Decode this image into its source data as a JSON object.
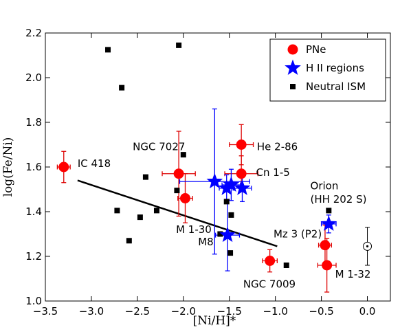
{
  "chart_data": {
    "type": "scatter",
    "xlabel": "[Ni/H]*",
    "ylabel": "log(Fe/Ni)",
    "xlim": [
      -3.5,
      0.25
    ],
    "ylim": [
      1.0,
      2.2
    ],
    "x_ticks": [
      -3.5,
      -3.0,
      -2.5,
      -2.0,
      -1.5,
      -1.0,
      -0.5,
      0.0
    ],
    "x_tick_labels": [
      "−3.5",
      "−3.0",
      "−2.5",
      "−2.0",
      "−1.5",
      "−1.0",
      "−0.5",
      "0.0"
    ],
    "y_ticks": [
      1.0,
      1.2,
      1.4,
      1.6,
      1.8,
      2.0,
      2.2
    ],
    "y_tick_labels": [
      "1.0",
      "1.2",
      "1.4",
      "1.6",
      "1.8",
      "2.0",
      "2.2"
    ],
    "legend": {
      "position": "top-right",
      "entries": [
        {
          "label": "PNe",
          "marker": "circle",
          "color": "#ff0000"
        },
        {
          "label": "H II regions",
          "marker": "star",
          "color": "#0000ff"
        },
        {
          "label": "Neutral ISM",
          "marker": "square",
          "color": "#000000"
        }
      ]
    },
    "series": [
      {
        "name": "PNe",
        "marker": "circle",
        "color": "#ff0000",
        "error_color": "#dd0000",
        "points": [
          {
            "x": -3.3,
            "y": 1.6,
            "xerr": 0.07,
            "yerr": [
              0.07,
              0.07
            ]
          },
          {
            "x": -2.05,
            "y": 1.57,
            "xerr": 0.18,
            "yerr": [
              0.19,
              0.19
            ]
          },
          {
            "x": -1.98,
            "y": 1.46,
            "xerr": 0.08,
            "yerr": [
              0.11,
              0.11
            ]
          },
          {
            "x": -1.37,
            "y": 1.7,
            "xerr": 0.13,
            "yerr": [
              0.09,
              0.09
            ]
          },
          {
            "x": -1.37,
            "y": 1.57,
            "xerr": 0.18,
            "yerr": [
              0.08,
              0.08
            ]
          },
          {
            "x": -1.06,
            "y": 1.18,
            "xerr": 0.08,
            "yerr": [
              0.05,
              0.05
            ]
          },
          {
            "x": -0.46,
            "y": 1.25,
            "xerr": 0.07,
            "yerr": [
              0.09,
              0.09
            ]
          },
          {
            "x": -0.44,
            "y": 1.16,
            "xerr": 0.1,
            "yerr": [
              0.12,
              0.12
            ]
          }
        ]
      },
      {
        "name": "H II regions",
        "marker": "star",
        "color": "#0000ff",
        "error_color": "#0000ff",
        "points": [
          {
            "x": -1.66,
            "y": 1.535,
            "xerr": 0.38,
            "yerr": [
              0.325,
              0.325
            ]
          },
          {
            "x": -1.53,
            "y": 1.505,
            "xerr": 0.08,
            "yerr": [
              0.06,
              0.06
            ]
          },
          {
            "x": -1.48,
            "y": 1.52,
            "xerr": 0.1,
            "yerr": [
              0.07,
              0.07
            ]
          },
          {
            "x": -1.36,
            "y": 1.505,
            "xerr": 0.1,
            "yerr": [
              0.06,
              0.06
            ]
          },
          {
            "x": -1.52,
            "y": 1.295,
            "xerr": 0.13,
            "yerr": [
              0.16,
              0.16
            ]
          },
          {
            "x": -0.42,
            "y": 1.345,
            "xerr": 0.08,
            "yerr": [
              0.04,
              0.04
            ]
          }
        ]
      },
      {
        "name": "Neutral ISM",
        "marker": "square",
        "color": "#000000",
        "points": [
          {
            "x": -2.82,
            "y": 2.125
          },
          {
            "x": -2.05,
            "y": 2.145
          },
          {
            "x": -2.67,
            "y": 1.955
          },
          {
            "x": -2.0,
            "y": 1.655
          },
          {
            "x": -2.41,
            "y": 1.555
          },
          {
            "x": -2.07,
            "y": 1.495
          },
          {
            "x": -2.72,
            "y": 1.405
          },
          {
            "x": -2.29,
            "y": 1.405
          },
          {
            "x": -2.47,
            "y": 1.375
          },
          {
            "x": -2.59,
            "y": 1.27
          },
          {
            "x": -1.53,
            "y": 1.445
          },
          {
            "x": -1.48,
            "y": 1.385
          },
          {
            "x": -1.6,
            "y": 1.3
          },
          {
            "x": -1.49,
            "y": 1.215
          },
          {
            "x": -0.88,
            "y": 1.16
          },
          {
            "x": -0.42,
            "y": 1.405
          }
        ]
      }
    ],
    "fit_line": {
      "x": [
        -3.15,
        -0.98
      ],
      "y": [
        1.54,
        1.245
      ]
    },
    "sun_symbol": {
      "x": 0.0,
      "y": 1.245,
      "yerr": [
        0.085,
        0.085
      ]
    },
    "annotations": [
      {
        "text": "IC 418",
        "x": -3.15,
        "y": 1.6,
        "anchor": "start"
      },
      {
        "text": "NGC 7027",
        "x": -2.55,
        "y": 1.675,
        "anchor": "start"
      },
      {
        "text": "He 2-86",
        "x": -1.2,
        "y": 1.675,
        "anchor": "start"
      },
      {
        "text": "Cn 1-5",
        "x": -1.21,
        "y": 1.56,
        "anchor": "start"
      },
      {
        "text": "M 1-30",
        "x": -2.08,
        "y": 1.305,
        "anchor": "start"
      },
      {
        "text": "M8",
        "x": -1.84,
        "y": 1.25,
        "anchor": "start"
      },
      {
        "text": "Mz 3 (P2)",
        "x": -1.02,
        "y": 1.285,
        "anchor": "start"
      },
      {
        "text": "NGC 7009",
        "x": -1.35,
        "y": 1.06,
        "anchor": "start"
      },
      {
        "text": "M 1-32",
        "x": -0.35,
        "y": 1.105,
        "anchor": "start"
      },
      {
        "text": "Orion",
        "x": -0.62,
        "y": 1.5,
        "anchor": "start"
      },
      {
        "text": "(HH 202 S)",
        "x": -0.62,
        "y": 1.44,
        "anchor": "start"
      }
    ]
  }
}
